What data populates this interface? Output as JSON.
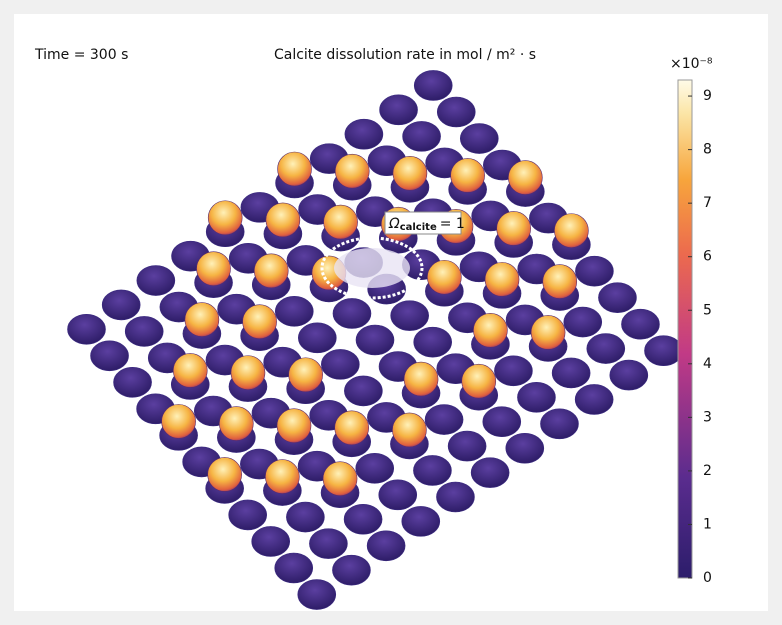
{
  "header": {
    "time": "Time = 300 s",
    "title": "Calcite dissolution rate in mol / m² · s"
  },
  "colorbar": {
    "exponent": "×10⁻⁸",
    "range": [
      0,
      9.3
    ],
    "ticks": [
      0,
      1,
      2,
      3,
      4,
      5,
      6,
      7,
      8,
      9
    ]
  },
  "annotation": {
    "symbol": "Ω",
    "subscript": "calcite",
    "text": "= 1"
  }
}
